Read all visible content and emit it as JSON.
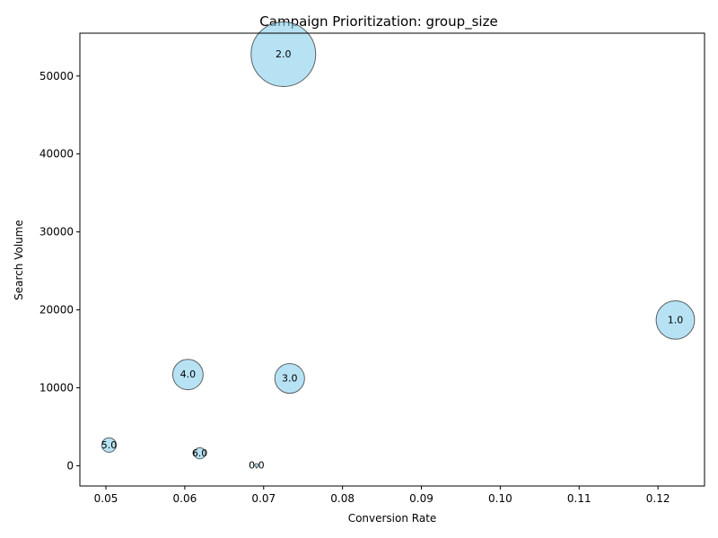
{
  "chart_data": {
    "type": "scatter",
    "title": "Campaign Prioritization: group_size",
    "xlabel": "Conversion Rate",
    "ylabel": "Search Volume",
    "xlim": [
      0.0467,
      0.1259
    ],
    "ylim": [
      -2600,
      55500
    ],
    "x_ticks": [
      "0.05",
      "0.06",
      "0.07",
      "0.08",
      "0.09",
      "0.10",
      "0.11",
      "0.12"
    ],
    "x_tick_values": [
      0.05,
      0.06,
      0.07,
      0.08,
      0.09,
      0.1,
      0.11,
      0.12
    ],
    "y_ticks": [
      "0",
      "10000",
      "20000",
      "30000",
      "40000",
      "50000"
    ],
    "y_tick_values": [
      0,
      10000,
      20000,
      30000,
      40000,
      50000
    ],
    "grid": false,
    "bubble_color": "#87ceeb",
    "bubble_edge_color": "#000000",
    "points": [
      {
        "label": "2.0",
        "x": 0.0725,
        "y": 52800
      },
      {
        "label": "1.0",
        "x": 0.1222,
        "y": 18700
      },
      {
        "label": "4.0",
        "x": 0.0604,
        "y": 11700
      },
      {
        "label": "3.0",
        "x": 0.0733,
        "y": 11200
      },
      {
        "label": "5.0",
        "x": 0.0504,
        "y": 2650
      },
      {
        "label": "6.0",
        "x": 0.0619,
        "y": 1600
      },
      {
        "label": "0.0",
        "x": 0.0691,
        "y": 50
      }
    ]
  }
}
